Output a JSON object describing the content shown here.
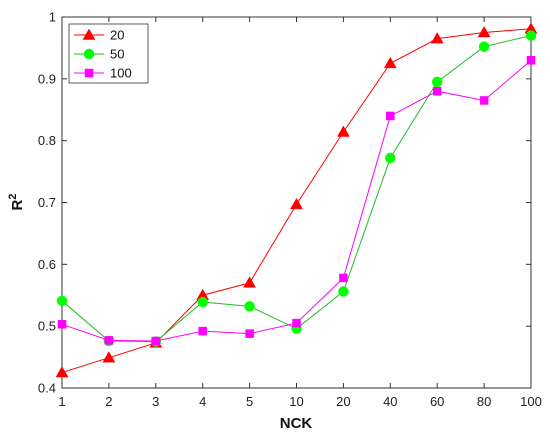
{
  "chart_data": {
    "type": "line",
    "categories": [
      "1",
      "2",
      "3",
      "4",
      "5",
      "10",
      "20",
      "40",
      "60",
      "80",
      "100"
    ],
    "series": [
      {
        "name": "20",
        "color": "#ff0000",
        "marker": "triangle",
        "values": [
          0.425,
          0.449,
          0.473,
          0.55,
          0.57,
          0.697,
          0.814,
          0.925,
          0.965,
          0.975,
          0.981
        ]
      },
      {
        "name": "50",
        "color": "#00ff00",
        "line_color": "#22bb22",
        "marker": "circle",
        "values": [
          0.541,
          0.476,
          0.475,
          0.539,
          0.532,
          0.496,
          0.556,
          0.772,
          0.895,
          0.952,
          0.97
        ]
      },
      {
        "name": "100",
        "color": "#ff00ff",
        "marker": "square",
        "values": [
          0.503,
          0.477,
          0.476,
          0.492,
          0.488,
          0.505,
          0.578,
          0.84,
          0.88,
          0.865,
          0.93
        ]
      }
    ],
    "xlabel": "NCK",
    "ylabel": "R",
    "ylabel_superscript": "2",
    "ylim": [
      0.4,
      1.0
    ],
    "yticks": [
      "0.4",
      "0.5",
      "0.6",
      "0.7",
      "0.8",
      "0.9",
      "1"
    ],
    "legend_position": "top-left",
    "grid": false
  }
}
